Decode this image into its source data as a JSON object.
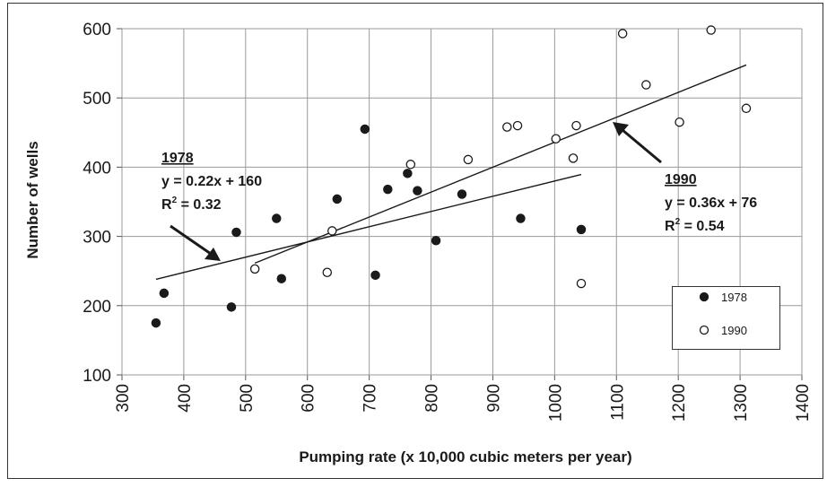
{
  "chart_data": {
    "type": "scatter",
    "xlabel": "Pumping rate (x 10,000 cubic meters per year)",
    "ylabel": "Number of wells",
    "xlim": [
      300,
      1400
    ],
    "ylim": [
      100,
      600
    ],
    "x_ticks": [
      "300",
      "400",
      "500",
      "600",
      "700",
      "800",
      "900",
      "1000",
      "1100",
      "1200",
      "1300",
      "1400"
    ],
    "y_ticks": [
      "100",
      "200",
      "300",
      "400",
      "500",
      "600"
    ],
    "grid": true,
    "legend_position": "lower-right",
    "series": [
      {
        "name": "1978",
        "marker": "filled-circle",
        "color": "#1a1a1a",
        "x": [
          355,
          368,
          477,
          485,
          550,
          558,
          648,
          693,
          710,
          730,
          762,
          778,
          808,
          850,
          945,
          1043
        ],
        "y": [
          175,
          218,
          198,
          306,
          326,
          239,
          354,
          455,
          244,
          368,
          391,
          366,
          294,
          361,
          326,
          310
        ],
        "trendline": {
          "slope": 0.22,
          "intercept": 160,
          "x_range": [
            355,
            1043
          ]
        },
        "annotation": {
          "title": "1978",
          "equation": "y = 0.22x + 160",
          "r2_label": "R",
          "r2_sup": "2",
          "r2_value": " = 0.32"
        }
      },
      {
        "name": "1990",
        "marker": "open-circle",
        "color": "#1a1a1a",
        "x": [
          515,
          632,
          640,
          767,
          860,
          923,
          940,
          1002,
          1030,
          1035,
          1043,
          1110,
          1148,
          1202,
          1253,
          1310
        ],
        "y": [
          253,
          248,
          308,
          404,
          411,
          458,
          460,
          441,
          413,
          460,
          232,
          593,
          519,
          465,
          598,
          485
        ],
        "trendline": {
          "slope": 0.36,
          "intercept": 76,
          "x_range": [
            515,
            1310
          ]
        },
        "annotation": {
          "title": "1990",
          "equation": "y = 0.36x + 76",
          "r2_label": "R",
          "r2_sup": "2",
          "r2_value": " = 0.54"
        }
      }
    ]
  }
}
